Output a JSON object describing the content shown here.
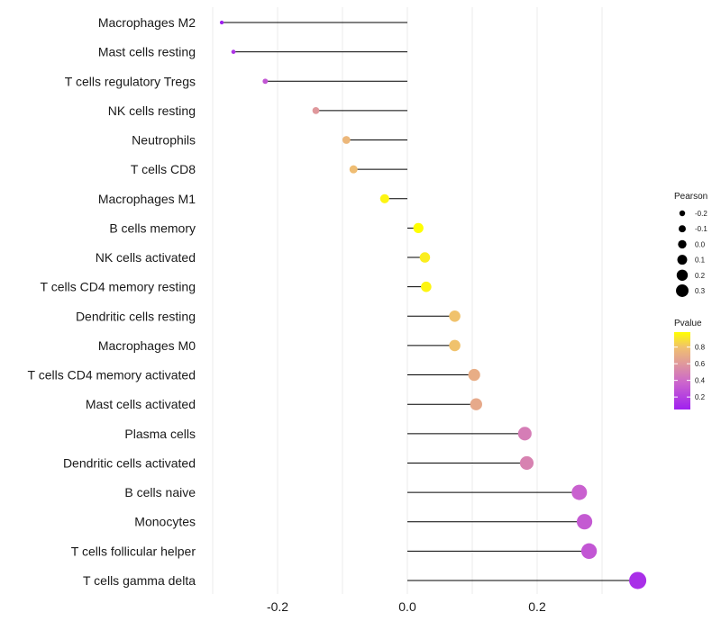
{
  "chart_data": {
    "type": "lollipop",
    "title": "",
    "xlabel": "",
    "ylabel": "",
    "xlim": [
      -0.3,
      0.36
    ],
    "xticks": [
      -0.2,
      0.0,
      0.2
    ],
    "xtick_labels": [
      "-0.2",
      "0.0",
      "0.2"
    ],
    "grid": true,
    "categories": [
      "Macrophages M2",
      "Mast cells resting",
      "T cells regulatory  Tregs",
      "NK cells resting",
      "Neutrophils",
      "T cells CD8",
      "Macrophages M1",
      "B cells memory",
      "NK cells activated",
      "T cells CD4 memory resting",
      "Dendritic cells resting",
      "Macrophages M0",
      "T cells CD4 memory activated",
      "Mast cells activated",
      "Plasma cells",
      "Dendritic cells activated",
      "B cells naive",
      "Monocytes",
      "T cells follicular helper",
      "T cells gamma delta"
    ],
    "pearson": [
      -0.286,
      -0.268,
      -0.219,
      -0.141,
      -0.094,
      -0.083,
      -0.035,
      0.017,
      0.027,
      0.029,
      0.073,
      0.073,
      0.103,
      0.106,
      0.181,
      0.184,
      0.265,
      0.273,
      0.28,
      0.355
    ],
    "pvalue": [
      0.05,
      0.15,
      0.3,
      0.6,
      0.75,
      0.78,
      0.95,
      0.98,
      0.93,
      0.95,
      0.8,
      0.8,
      0.7,
      0.68,
      0.48,
      0.5,
      0.35,
      0.32,
      0.3,
      0.12
    ],
    "legend": {
      "size_title": "Pearson",
      "size_values": [
        -0.2,
        -0.1,
        0.0,
        0.1,
        0.2,
        0.3
      ],
      "size_labels": [
        "-0.2",
        "-0.1",
        "0.0",
        "0.1",
        "0.2",
        "0.3"
      ],
      "color_title": "Pvalue",
      "color_values": [
        0.8,
        0.6,
        0.4,
        0.2
      ],
      "color_labels": [
        "0.8",
        "0.6",
        "0.4",
        "0.2"
      ],
      "color_range": [
        0.05,
        0.98
      ],
      "position": "right"
    }
  },
  "colors": {
    "low": "#a020f0",
    "mid": "#dd88aa",
    "midhigh": "#f0c070",
    "high": "#ffff00",
    "stem": "#000000",
    "grid": "#ebebeb"
  }
}
